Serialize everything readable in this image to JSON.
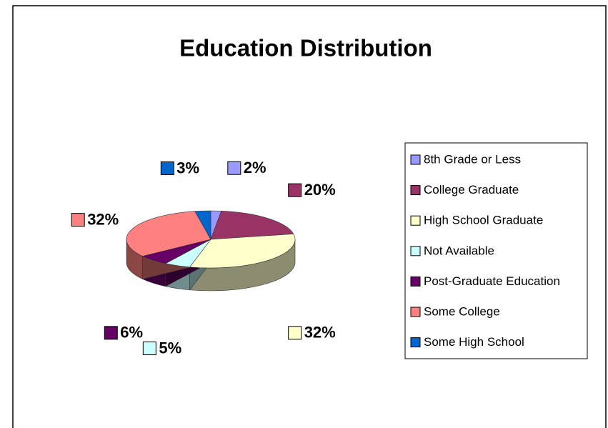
{
  "chart_data": {
    "type": "pie",
    "title": "Education Distribution",
    "categories": [
      "8th Grade or Less",
      "College Graduate",
      "High School Graduate",
      "Not Available",
      "Post-Graduate Education",
      "Some College",
      "Some High School"
    ],
    "values": [
      2,
      20,
      32,
      5,
      6,
      32,
      3
    ],
    "value_labels": [
      "2%",
      "20%",
      "32%",
      "5%",
      "6%",
      "32%",
      "3%"
    ],
    "colors": [
      "#9999ff",
      "#993366",
      "#ffffcc",
      "#ccffff",
      "#660066",
      "#ff8080",
      "#0066cc"
    ],
    "legend": "right"
  }
}
